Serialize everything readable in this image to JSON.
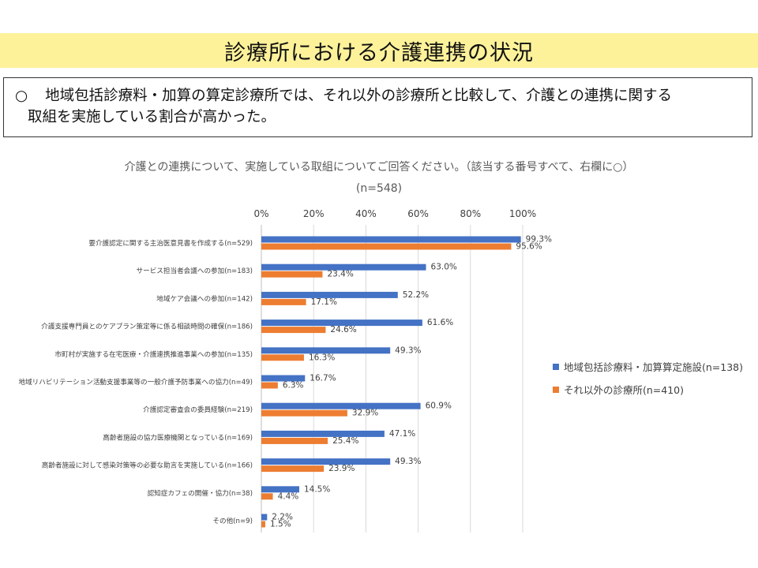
{
  "title": "診療所における介護連携の状況",
  "summary": {
    "bullet": "○",
    "line1": "地域包括診療料・加算の算定診療所では、それ以外の診療所と比較して、介護との連携に関する",
    "line2": "取組を実施している割合が高かった。"
  },
  "question": "介護との連携について、実施している取組についてご回答ください。（該当する番号すべて、右欄に○）",
  "n_total": "(n=548)",
  "legend": [
    {
      "label": "地域包括診療料・加算算定施設(n=138)",
      "color": "#4472c4"
    },
    {
      "label": "それ以外の診療所(n=410)",
      "color": "#ed7d31"
    }
  ],
  "chart_data": {
    "type": "bar",
    "orientation": "horizontal",
    "xlim": [
      0,
      100
    ],
    "xticks": [
      "0%",
      "20%",
      "40%",
      "60%",
      "80%",
      "100%"
    ],
    "grid": true,
    "legend_position": "right",
    "categories": [
      "要介護認定に関する主治医意見書を作成する(n=529)",
      "サービス担当者会議への参加(n=183)",
      "地域ケア会議への参加(n=142)",
      "介護支援専門員とのケアプラン策定等に係る相談時間の確保(n=186)",
      "市町村が実施する在宅医療・介護連携推進事業への参加(n=135)",
      "地域リハビリテーション活動支援事業等の一般介護予防事業への協力(n=49)",
      "介護認定審査会の委員経験(n=219)",
      "高齢者施設の協力医療機関となっている(n=169)",
      "高齢者施設に対して感染対策等の必要な助言を実施している(n=166)",
      "認知症カフェの開催・協力(n=38)",
      "その他(n=9)"
    ],
    "series": [
      {
        "name": "地域包括診療料・加算算定施設(n=138)",
        "color": "#4472c4",
        "values": [
          99.3,
          63.0,
          52.2,
          61.6,
          49.3,
          16.7,
          60.9,
          47.1,
          49.3,
          14.5,
          2.2
        ],
        "labels": [
          "99.3%",
          "63.0%",
          "52.2%",
          "61.6%",
          "49.3%",
          "16.7%",
          "60.9%",
          "47.1%",
          "49.3%",
          "14.5%",
          "2.2%"
        ]
      },
      {
        "name": "それ以外の診療所(n=410)",
        "color": "#ed7d31",
        "values": [
          95.6,
          23.4,
          17.1,
          24.6,
          16.3,
          6.3,
          32.9,
          25.4,
          23.9,
          4.4,
          1.5
        ],
        "labels": [
          "95.6%",
          "23.4%",
          "17.1%",
          "24.6%",
          "16.3%",
          "6.3%",
          "32.9%",
          "25.4%",
          "23.9%",
          "4.4%",
          "1.5%"
        ]
      }
    ]
  }
}
